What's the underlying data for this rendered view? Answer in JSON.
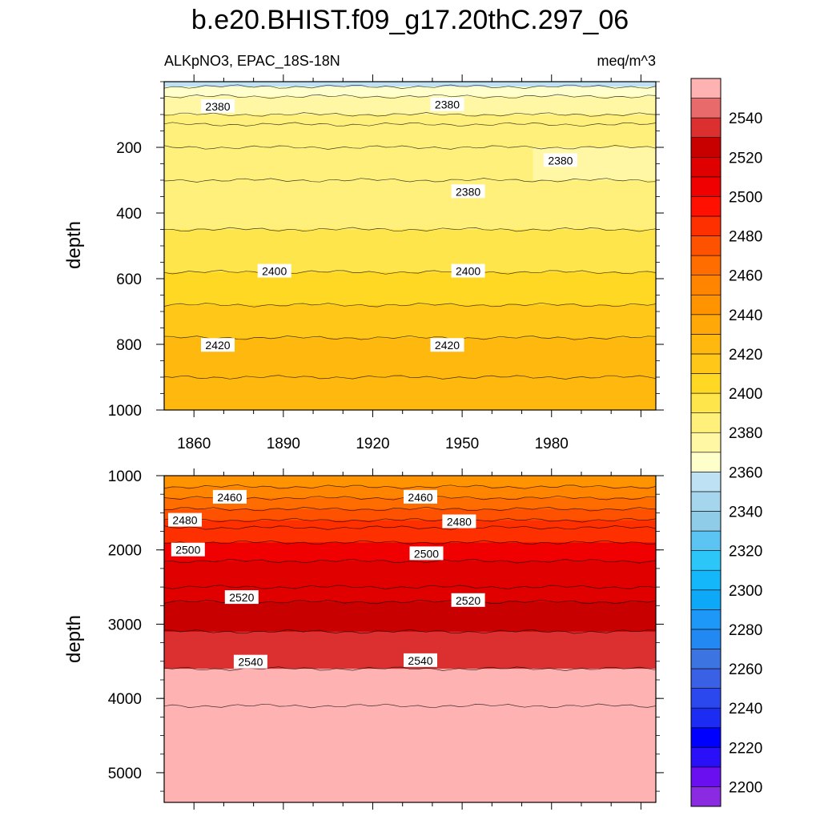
{
  "figure": {
    "title": "b.e20.BHIST.f09_g17.20thC.297_06",
    "left_string": "ALKpNO3, EPAC_18S-18N",
    "right_string": "meq/m^3"
  },
  "chart_data": [
    {
      "type": "heatmap",
      "panel": "upper",
      "title": "b.e20.BHIST.f09_g17.20thC.297_06",
      "variable": "ALKpNO3, EPAC_18S-18N",
      "units": "meq/m^3",
      "xlabel": "",
      "ylabel": "depth",
      "xlim": [
        1850,
        2015
      ],
      "ylim": [
        0,
        1000
      ],
      "y_reversed": true,
      "x_ticks": [
        "1860",
        "1890",
        "1920",
        "1950",
        "1980"
      ],
      "y_ticks": [
        "200",
        "400",
        "600",
        "800",
        "1000"
      ],
      "depth_levels": [
        0,
        15,
        45,
        100,
        130,
        200,
        300,
        450,
        580,
        680,
        780,
        900,
        1000
      ],
      "left_values": [
        2350,
        2362,
        2372,
        2378,
        2385,
        2385,
        2385,
        2393,
        2400,
        2408,
        2418,
        2425,
        2432
      ],
      "right_values": [
        2350,
        2363,
        2375,
        2380,
        2381,
        2381,
        2376,
        2388,
        2398,
        2410,
        2418,
        2426,
        2432
      ],
      "contour_labels": [
        {
          "text": "2380",
          "x": 1868,
          "y": 75
        },
        {
          "text": "2380",
          "x": 1945,
          "y": 70
        },
        {
          "text": "2380",
          "x": 1983,
          "y": 240
        },
        {
          "text": "2380",
          "x": 1952,
          "y": 335
        },
        {
          "text": "2400",
          "x": 1887,
          "y": 577
        },
        {
          "text": "2400",
          "x": 1952,
          "y": 577
        },
        {
          "text": "2420",
          "x": 1868,
          "y": 803
        },
        {
          "text": "2420",
          "x": 1945,
          "y": 803
        }
      ]
    },
    {
      "type": "heatmap",
      "panel": "lower",
      "ylabel": "depth",
      "xlim": [
        1850,
        2015
      ],
      "ylim": [
        1000,
        5400
      ],
      "y_reversed": true,
      "y_ticks": [
        "1000",
        "2000",
        "3000",
        "4000",
        "5000"
      ],
      "depth_levels": [
        1000,
        1150,
        1300,
        1450,
        1600,
        1700,
        1900,
        2150,
        2500,
        2700,
        3100,
        3600,
        4100,
        5400
      ],
      "left_values": [
        2440,
        2450,
        2460,
        2470,
        2480,
        2482,
        2495,
        2505,
        2515,
        2520,
        2532,
        2545,
        2555,
        2560
      ],
      "right_values": [
        2440,
        2450,
        2460,
        2470,
        2480,
        2482,
        2495,
        2505,
        2515,
        2520,
        2532,
        2547,
        2557,
        2560
      ],
      "contour_labels": [
        {
          "text": "2460",
          "x": 1872,
          "y": 1290
        },
        {
          "text": "2460",
          "x": 1936,
          "y": 1290
        },
        {
          "text": "2480",
          "x": 1857,
          "y": 1600
        },
        {
          "text": "2480",
          "x": 1949,
          "y": 1620
        },
        {
          "text": "2500",
          "x": 1858,
          "y": 2000
        },
        {
          "text": "2500",
          "x": 1938,
          "y": 2050
        },
        {
          "text": "2520",
          "x": 1876,
          "y": 2640
        },
        {
          "text": "2520",
          "x": 1952,
          "y": 2680
        },
        {
          "text": "2540",
          "x": 1879,
          "y": 3510
        },
        {
          "text": "2540",
          "x": 1936,
          "y": 3490
        }
      ]
    },
    {
      "type": "colorbar",
      "levels": [
        2190,
        2200,
        2210,
        2220,
        2230,
        2240,
        2250,
        2260,
        2270,
        2280,
        2290,
        2300,
        2310,
        2320,
        2330,
        2340,
        2350,
        2360,
        2370,
        2380,
        2390,
        2400,
        2410,
        2420,
        2430,
        2440,
        2450,
        2460,
        2470,
        2480,
        2490,
        2500,
        2510,
        2520,
        2530,
        2540,
        2550,
        2560
      ],
      "tick_labels": [
        "2200",
        "2220",
        "2240",
        "2260",
        "2280",
        "2300",
        "2320",
        "2340",
        "2360",
        "2380",
        "2400",
        "2420",
        "2440",
        "2460",
        "2480",
        "2500",
        "2520",
        "2540"
      ],
      "colors": [
        "#8a2be2",
        "#6a0ff0",
        "#2a10f8",
        "#0000ff",
        "#1c2cf2",
        "#2a48ee",
        "#3a60e6",
        "#3c74e2",
        "#2288f2",
        "#1e98f8",
        "#0ea8f8",
        "#14b8fa",
        "#2cc6f8",
        "#5cc4f2",
        "#8ecce8",
        "#a6d6ee",
        "#bee2f4",
        "#ffffcc",
        "#fff7a4",
        "#fff07c",
        "#ffe54c",
        "#ffd824",
        "#ffc818",
        "#ffb80e",
        "#ffa808",
        "#ff9400",
        "#ff8400",
        "#ff6c00",
        "#ff5200",
        "#ff3000",
        "#ff1000",
        "#f00000",
        "#e00000",
        "#c80000",
        "#dc3030",
        "#e86a6a",
        "#ffb2b2"
      ]
    }
  ]
}
